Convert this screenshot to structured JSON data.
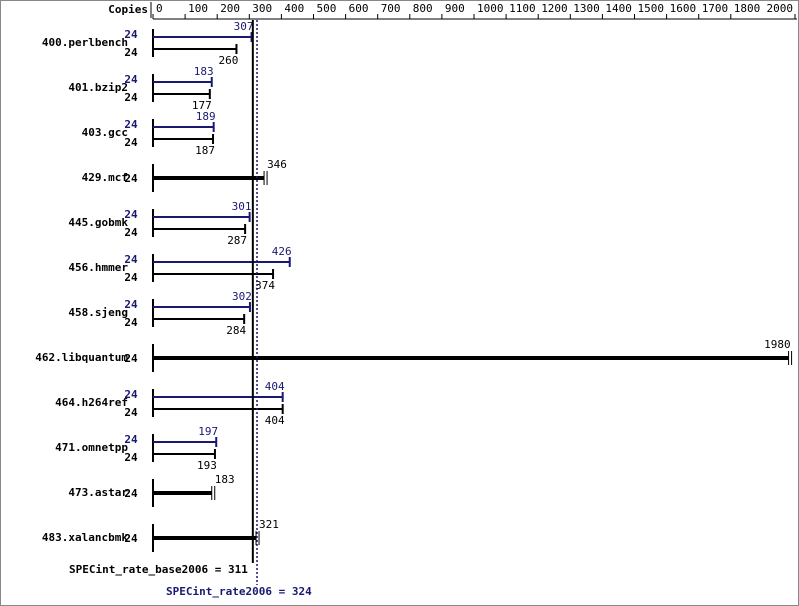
{
  "chart_data": {
    "type": "bar",
    "orientation": "horizontal",
    "copies_header": "Copies",
    "categories": [
      "400.perlbench",
      "401.bzip2",
      "403.gcc",
      "429.mcf",
      "445.gobmk",
      "456.hmmer",
      "458.sjeng",
      "462.libquantum",
      "464.h264ref",
      "471.omnetpp",
      "473.astar",
      "483.xalancbmk"
    ],
    "series": [
      {
        "color": "#000000",
        "copies": [
          24,
          24,
          24,
          24,
          24,
          24,
          24,
          24,
          24,
          24,
          24,
          24
        ],
        "values": [
          260,
          177,
          187,
          346,
          287,
          374,
          284,
          1980,
          404,
          193,
          183,
          321
        ]
      },
      {
        "color": "#191970",
        "copies": [
          24,
          24,
          24,
          null,
          24,
          24,
          24,
          null,
          24,
          24,
          null,
          null
        ],
        "values": [
          307,
          183,
          189,
          null,
          301,
          426,
          302,
          null,
          404,
          197,
          null,
          null
        ]
      }
    ],
    "xlim": [
      0,
      2000
    ],
    "xticks": [
      0,
      100,
      200,
      300,
      400,
      500,
      600,
      700,
      800,
      900,
      1000,
      1100,
      1200,
      1300,
      1400,
      1500,
      1600,
      1700,
      1800,
      2000
    ],
    "reference_lines": [
      {
        "label": "SPECint_rate_base2006 = 311",
        "value": 311,
        "color": "#000000",
        "style": "solid"
      },
      {
        "label": "SPECint_rate2006 = 324",
        "value": 324,
        "color": "#191970",
        "style": "dotted"
      }
    ]
  }
}
